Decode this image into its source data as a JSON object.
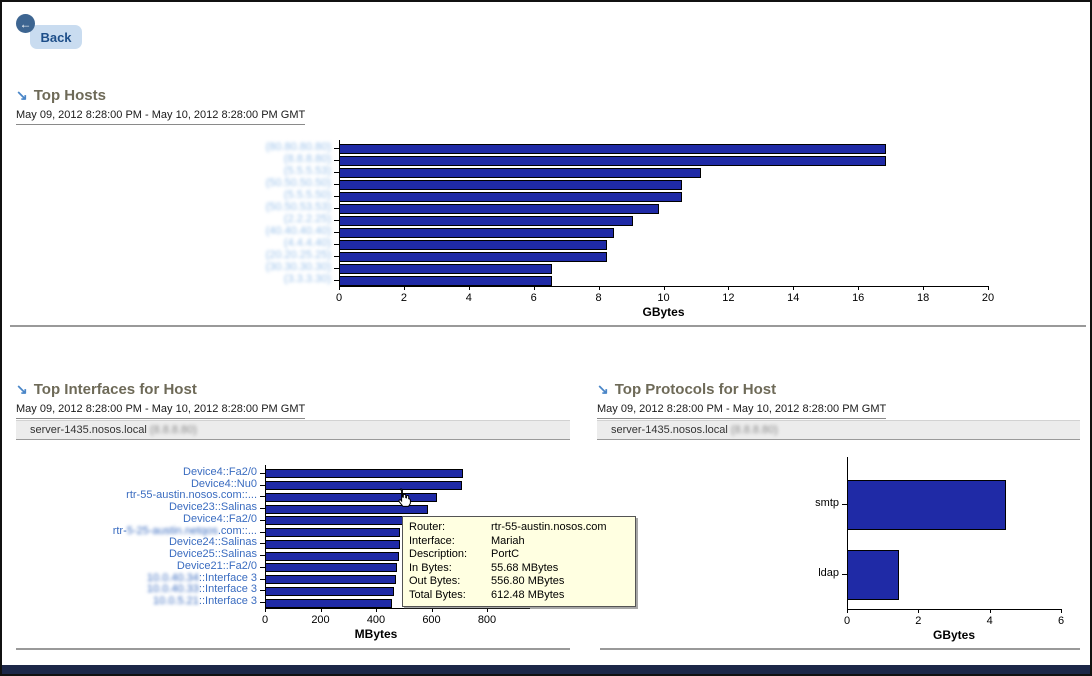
{
  "icons": {
    "back_arrow": "←",
    "section_arrow": "↘"
  },
  "back_button": {
    "label": "Back"
  },
  "panels": {
    "top_hosts": {
      "title": "Top Hosts",
      "date_range": "May 09, 2012 8:28:00 PM - May 10, 2012 8:28:00 PM GMT"
    },
    "top_interfaces": {
      "title": "Top Interfaces for Host",
      "date_range": "May 09, 2012 8:28:00 PM - May 10, 2012 8:28:00 PM GMT",
      "host": {
        "name": "server-1435.nosos.local",
        "ip_redacted": "(8.8.8.80)"
      }
    },
    "top_protocols": {
      "title": "Top Protocols for Host",
      "date_range": "May 09, 2012 8:28:00 PM - May 10, 2012 8:28:00 PM GMT",
      "host": {
        "name": "server-1435.nosos.local",
        "ip_redacted": "(8.8.8.80)"
      }
    }
  },
  "tooltip": {
    "rows": [
      {
        "label": "Router:",
        "value": "rtr-55-austin.nosos.com"
      },
      {
        "label": "Interface:",
        "value": "Mariah"
      },
      {
        "label": "Description:",
        "value": "PortC"
      },
      {
        "label": "In Bytes:",
        "value": "55.68 MBytes"
      },
      {
        "label": "Out Bytes:",
        "value": "556.80 MBytes"
      },
      {
        "label": "Total Bytes:",
        "value": "612.48 MBytes"
      }
    ]
  },
  "colors": {
    "bar": "#1f2aa6",
    "header_text": "#6e6a58",
    "link_blue": "#3a6cc0",
    "redacted_blue": "#9cc2ea",
    "tooltip_bg": "#ffffe1"
  },
  "chart_data": [
    {
      "id": "hosts",
      "type": "bar",
      "orientation": "horizontal",
      "title": "Top Hosts",
      "xlabel": "GBytes",
      "xlim": [
        0,
        20
      ],
      "xticks": [
        0,
        2,
        4,
        6,
        8,
        10,
        12,
        14,
        16,
        18,
        20
      ],
      "label_color": "#9cc2ea",
      "labels_redacted": true,
      "rows": [
        {
          "label": [
            {
              "t": "(80.80.80.80)",
              "redacted": true
            }
          ],
          "value": 16.8
        },
        {
          "label": [
            {
              "t": "(8.8.8.80)",
              "redacted": true
            }
          ],
          "value": 16.8
        },
        {
          "label": [
            {
              "t": "(5.5.5.53)",
              "redacted": true
            }
          ],
          "value": 11.1
        },
        {
          "label": [
            {
              "t": "(50.50.50.50)",
              "redacted": true
            }
          ],
          "value": 10.5
        },
        {
          "label": [
            {
              "t": "(5.5.5.50)",
              "redacted": true
            }
          ],
          "value": 10.5
        },
        {
          "label": [
            {
              "t": "(50.50.53.53)",
              "redacted": true
            }
          ],
          "value": 9.8
        },
        {
          "label": [
            {
              "t": "(2.2.2.25)",
              "redacted": true
            }
          ],
          "value": 9.0
        },
        {
          "label": [
            {
              "t": "(40.40.40.40)",
              "redacted": true
            }
          ],
          "value": 8.4
        },
        {
          "label": [
            {
              "t": "(4.4.4.40)",
              "redacted": true
            }
          ],
          "value": 8.2
        },
        {
          "label": [
            {
              "t": "(20.20.25.25)",
              "redacted": true
            }
          ],
          "value": 8.2
        },
        {
          "label": [
            {
              "t": "(30.30.30.30)",
              "redacted": true
            }
          ],
          "value": 6.5
        },
        {
          "label": [
            {
              "t": "(3.3.3.30)",
              "redacted": true
            }
          ],
          "value": 6.5
        }
      ]
    },
    {
      "id": "interfaces",
      "type": "bar",
      "orientation": "horizontal",
      "title": "Top Interfaces for Host",
      "xlabel": "MBytes",
      "xlim": [
        0,
        800
      ],
      "xticks": [
        0,
        200,
        400,
        600,
        800
      ],
      "label_color": "#3a6cc0",
      "rows": [
        {
          "label": [
            {
              "t": "Device4::Fa2/0"
            }
          ],
          "value": 705
        },
        {
          "label": [
            {
              "t": "Device4::Nu0"
            }
          ],
          "value": 702
        },
        {
          "label": [
            {
              "t": "rtr-55-austin.nosos.com::..."
            }
          ],
          "value": 612
        },
        {
          "label": [
            {
              "t": "Device23::Salinas"
            }
          ],
          "value": 580
        },
        {
          "label": [
            {
              "t": "Device4::Fa2/0"
            }
          ],
          "value": 558
        },
        {
          "label": [
            {
              "t": "rtr-"
            },
            {
              "t": "5-25-austin.netqos",
              "redacted": true
            },
            {
              "t": ".com::..."
            }
          ],
          "value": 480
        },
        {
          "label": [
            {
              "t": "Device24::Salinas"
            }
          ],
          "value": 478
        },
        {
          "label": [
            {
              "t": "Device25::Salinas"
            }
          ],
          "value": 476
        },
        {
          "label": [
            {
              "t": "Device21::Fa2/0"
            }
          ],
          "value": 470
        },
        {
          "label": [
            {
              "t": "10.0.40.34",
              "redacted": true
            },
            {
              "t": "::Interface 3"
            }
          ],
          "value": 466
        },
        {
          "label": [
            {
              "t": "10.0.40.33",
              "redacted": true
            },
            {
              "t": "::Interface 3"
            }
          ],
          "value": 458
        },
        {
          "label": [
            {
              "t": "10.0.5.21",
              "redacted": true
            },
            {
              "t": "::Interface 3"
            }
          ],
          "value": 450
        }
      ]
    },
    {
      "id": "protocols",
      "type": "bar",
      "orientation": "horizontal",
      "title": "Top Protocols for Host",
      "xlabel": "GBytes",
      "xlim": [
        0,
        6
      ],
      "xticks": [
        0,
        2,
        4,
        6
      ],
      "label_color": "#000000",
      "rows": [
        {
          "label": [
            {
              "t": "smtp"
            }
          ],
          "value": 4.4
        },
        {
          "label": [
            {
              "t": "ldap"
            }
          ],
          "value": 1.4
        }
      ]
    }
  ]
}
